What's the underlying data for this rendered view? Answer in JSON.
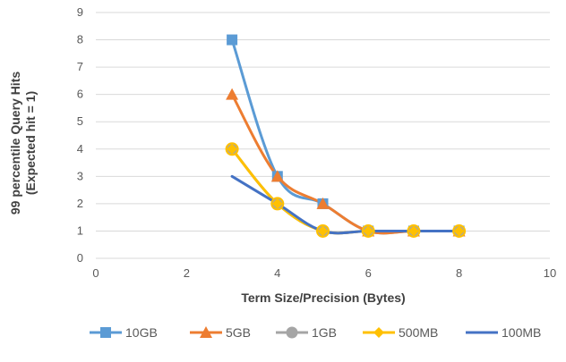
{
  "chart_data": {
    "type": "line",
    "xlabel": "Term Size/Precision (Bytes)",
    "ylabel_lines": [
      "99 percentile Query Hits",
      "(Expected hit = 1)"
    ],
    "xlim": [
      0,
      10
    ],
    "ylim": [
      0,
      9
    ],
    "xticks": [
      0,
      2,
      4,
      6,
      8,
      10
    ],
    "yticks": [
      0,
      1,
      2,
      3,
      4,
      5,
      6,
      7,
      8,
      9
    ],
    "grid": "horizontal",
    "legend_position": "bottom",
    "smooth": true,
    "x": [
      3,
      4,
      5,
      6,
      7,
      8
    ],
    "series": [
      {
        "name": "10GB",
        "values": [
          8,
          3,
          2,
          1,
          1,
          1
        ],
        "color": "#5B9BD5",
        "marker": "square"
      },
      {
        "name": "5GB",
        "values": [
          6,
          3,
          2,
          1,
          1,
          1
        ],
        "color": "#ED7D31",
        "marker": "triangle"
      },
      {
        "name": "1GB",
        "values": [
          4,
          2,
          1,
          1,
          1,
          1
        ],
        "color": "#A5A5A5",
        "marker": "circle"
      },
      {
        "name": "500MB",
        "values": [
          4,
          2,
          1,
          1,
          1,
          1
        ],
        "color": "#FFC000",
        "marker": "diamond"
      },
      {
        "name": "100MB",
        "values": [
          3,
          2,
          1,
          1,
          1,
          1
        ],
        "color": "#4472C4",
        "marker": "none"
      }
    ]
  }
}
